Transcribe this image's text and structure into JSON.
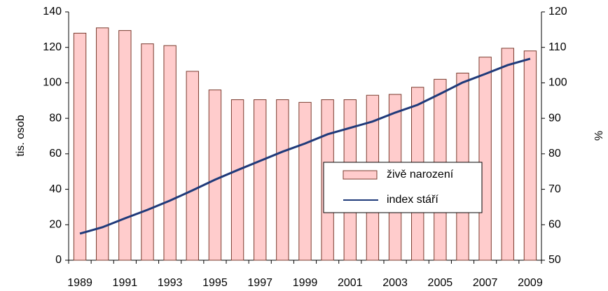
{
  "chart_data": {
    "type": "bar_line",
    "categories": [
      "1989",
      null,
      "1991",
      null,
      "1993",
      null,
      "1995",
      null,
      "1997",
      null,
      "1999",
      null,
      "2001",
      null,
      "2003",
      null,
      "2005",
      null,
      "2007",
      null,
      "2009"
    ],
    "series": [
      {
        "name": "živě narození",
        "type": "bar",
        "color": "#ffcccc",
        "values": [
          128,
          131,
          129.5,
          122,
          121,
          106.5,
          96,
          90.5,
          90.5,
          90.5,
          89,
          90.5,
          90.5,
          93,
          93.5,
          97.5,
          102,
          105.5,
          114.5,
          119.5,
          118
        ]
      },
      {
        "name": "index stáří",
        "type": "line",
        "axis": "y2",
        "color": "#1f3a7a",
        "values": [
          57.5,
          59.3,
          61.8,
          64.2,
          66.8,
          69.7,
          72.7,
          75.4,
          78,
          80.6,
          82.9,
          85.5,
          87.3,
          89.1,
          91.6,
          93.8,
          96.9,
          100.1,
          102.5,
          105,
          106.8
        ]
      }
    ],
    "ylabel": "tis. osob",
    "y2label": "%",
    "ylim": [
      0,
      140
    ],
    "yticks": [
      0,
      20,
      40,
      60,
      80,
      100,
      120,
      140
    ],
    "y2lim": [
      50,
      120
    ],
    "y2ticks": [
      50,
      60,
      70,
      80,
      90,
      100,
      110,
      120
    ]
  }
}
